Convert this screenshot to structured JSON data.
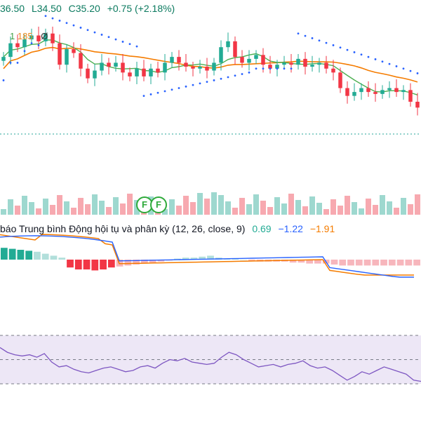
{
  "ohlc": {
    "open": "36.50",
    "low": "L34.50",
    "close": "C35.20",
    "change": "+0.75 (+2.18%)"
  },
  "ma_label": {
    "a": "1",
    "b": "185",
    "c": "Ø"
  },
  "macd": {
    "label": "báo Trung bình Động hội tụ và phân kỳ (12, 26, close, 9)",
    "v1": "0.69",
    "v2": "−1.22",
    "v3": "−1.91"
  },
  "markers": {
    "f1": "F",
    "f2": "F"
  },
  "colors": {
    "up": "#22ab94",
    "down": "#f23645",
    "ma_fast": "#4caf50",
    "ma_slow": "#f57c00",
    "sar": "#2962ff",
    "rsi": "#7e57c2"
  },
  "chart_data": {
    "type": "candlestick",
    "closes": [
      36.2,
      36.9,
      36.7,
      37.1,
      37.3,
      37.0,
      37.4,
      36.9,
      35.8,
      36.6,
      36.4,
      35.6,
      35.1,
      35.5,
      35.9,
      35.7,
      35.9,
      35.4,
      35.2,
      35.6,
      35.2,
      35.6,
      35.4,
      35.9,
      36.2,
      35.9,
      35.7,
      35.6,
      35.7,
      35.5,
      35.9,
      36.7,
      37.0,
      36.2,
      35.9,
      36.1,
      36.3,
      35.8,
      35.6,
      35.8,
      35.9,
      35.8,
      36.1,
      35.7,
      35.8,
      35.9,
      35.6,
      35.4,
      34.6,
      34.2,
      34.4,
      34.6,
      34.4,
      34.3,
      34.5,
      34.6,
      34.4,
      34.5,
      33.9,
      33.6
    ],
    "macd_hist": [
      0.6,
      0.55,
      0.5,
      0.45,
      0.4,
      0.3,
      0.2,
      0.1,
      -0.4,
      -0.5,
      -0.5,
      -0.55,
      -0.5,
      -0.4,
      -0.35,
      -0.3,
      -0.25,
      -0.2,
      -0.15,
      -0.1,
      -0.05,
      0.05,
      0.1,
      0.1,
      0.15,
      0.2,
      0.1,
      0.05,
      0.05,
      0.0,
      -0.05,
      -0.1,
      -0.1,
      -0.1,
      -0.1,
      -0.15,
      -0.15,
      -0.2,
      -0.2,
      -0.2,
      -0.25,
      -0.3,
      -0.3,
      -0.3,
      -0.3,
      -0.3,
      -0.3,
      -0.3,
      -0.3,
      -0.3,
      -0.3
    ],
    "rsi": [
      60,
      56,
      54,
      53,
      54,
      52,
      55,
      48,
      44,
      45,
      42,
      40,
      39,
      41,
      43,
      44,
      42,
      40,
      41,
      44,
      45,
      43,
      47,
      50,
      49,
      51,
      48,
      47,
      46,
      47,
      52,
      56,
      54,
      50,
      47,
      44,
      45,
      46,
      44,
      46,
      47,
      49,
      45,
      43,
      44,
      41,
      37,
      33,
      36,
      40,
      38,
      41,
      44,
      42,
      40,
      38,
      33,
      32
    ]
  }
}
